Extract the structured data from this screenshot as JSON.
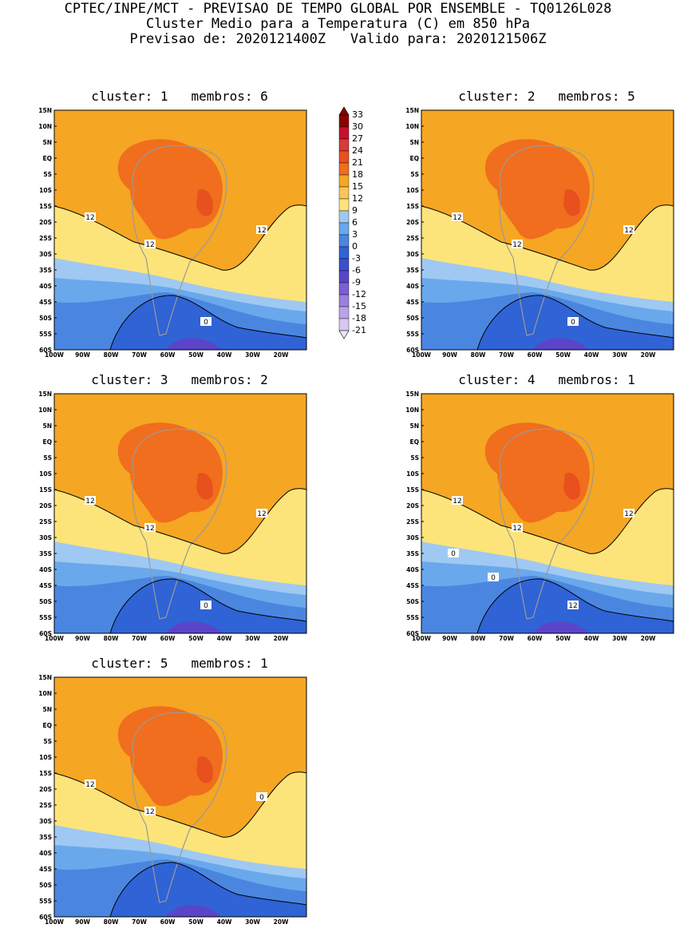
{
  "header": {
    "line1": "CPTEC/INPE/MCT - PREVISAO DE TEMPO GLOBAL POR ENSEMBLE - TQ0126L028",
    "line2": "Cluster Medio para a Temperatura (C) em 850 hPa",
    "line3": "Previsao de: 2020121400Z   Valido para: 2020121506Z"
  },
  "axes": {
    "lat_labels": [
      "15N",
      "10N",
      "5N",
      "EQ",
      "5S",
      "10S",
      "15S",
      "20S",
      "25S",
      "30S",
      "35S",
      "40S",
      "45S",
      "50S",
      "55S",
      "60S"
    ],
    "lon_labels": [
      "100W",
      "90W",
      "80W",
      "70W",
      "60W",
      "50W",
      "40W",
      "30W",
      "20W"
    ]
  },
  "colorbar": {
    "levels": [
      "33",
      "30",
      "27",
      "24",
      "21",
      "18",
      "15",
      "12",
      "9",
      "6",
      "3",
      "0",
      "-3",
      "-6",
      "-9",
      "-12",
      "-15",
      "-18",
      "-21"
    ],
    "colors": [
      "#8b0000",
      "#c8102e",
      "#d93a3a",
      "#e8501e",
      "#f06e1e",
      "#f5a623",
      "#fbc45a",
      "#fde47a",
      "#9fc9f2",
      "#6aa8ec",
      "#4a86e0",
      "#2f63d6",
      "#3d4fcf",
      "#5a45c8",
      "#7b5fd4",
      "#9a80de",
      "#b9a3e8",
      "#d7c8f2"
    ]
  },
  "panels": [
    {
      "title": "cluster: 1   membros: 6",
      "contour_labels": [
        "12",
        "12",
        "12",
        "0"
      ]
    },
    {
      "title": "cluster: 2   membros: 5",
      "contour_labels": [
        "12",
        "12",
        "12",
        "0"
      ]
    },
    {
      "title": "cluster: 3   membros: 2",
      "contour_labels": [
        "12",
        "12",
        "12",
        "0"
      ]
    },
    {
      "title": "cluster: 4   membros: 1",
      "contour_labels": [
        "12",
        "12",
        "12",
        "12",
        "0",
        "0"
      ]
    },
    {
      "title": "cluster: 5   membros: 1",
      "contour_labels": [
        "12",
        "12",
        "0"
      ]
    }
  ]
}
